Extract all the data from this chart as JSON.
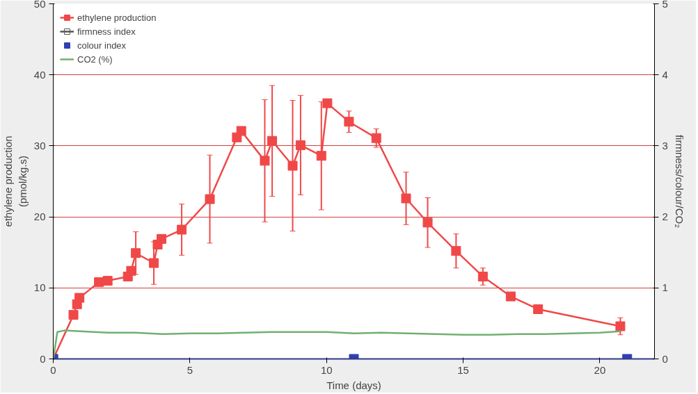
{
  "chart_data": {
    "type": "line",
    "xlabel": "Time (days)",
    "ylabel": "ethylene production\n(pmol/kg.s)",
    "y2label": "firmness/colour/CO₂",
    "xlim": [
      0,
      22
    ],
    "xticks": [
      0,
      5,
      10,
      15,
      20
    ],
    "ylim": [
      0,
      50
    ],
    "yticks": [
      0,
      10,
      20,
      30,
      40,
      50
    ],
    "y2lim": [
      0,
      5
    ],
    "y2ticks": [
      0,
      1,
      2,
      3,
      4,
      5
    ],
    "grid": "y",
    "legend": "top left",
    "marker": "square",
    "series": [
      {
        "name": "ethylene production",
        "color": "#f04848",
        "x": [
          0,
          0.74,
          0.87,
          0.96,
          1.67,
          1.99,
          2.73,
          2.85,
          3.02,
          3.68,
          3.82,
          3.96,
          4.7,
          5.73,
          6.72,
          6.88,
          7.74,
          8.01,
          8.76,
          9.05,
          9.81,
          10.03,
          10.82,
          11.82,
          12.91,
          13.7,
          14.74,
          15.72,
          16.74,
          17.74,
          20.75
        ],
        "values": [
          0,
          6.2,
          7.7,
          8.6,
          10.8,
          11.0,
          11.6,
          12.4,
          14.9,
          13.5,
          16.1,
          16.9,
          18.2,
          22.5,
          31.2,
          32.1,
          27.9,
          30.7,
          27.2,
          30.1,
          28.6,
          36.0,
          33.4,
          31.1,
          22.6,
          19.2,
          15.2,
          11.6,
          8.8,
          7.0,
          4.6
        ],
        "errors": [
          null,
          null,
          null,
          null,
          null,
          null,
          null,
          null,
          3,
          3,
          null,
          null,
          3.6,
          6.2,
          null,
          null,
          8.6,
          7.8,
          9.2,
          7,
          7.6,
          null,
          1.5,
          1.3,
          3.7,
          3.5,
          2.4,
          1.2,
          null,
          null,
          1.2
        ]
      },
      {
        "name": "firmness index",
        "color": "#555555",
        "marker": "open_square",
        "axis": "y2"
      },
      {
        "name": "colour index",
        "type": "scatter",
        "color": "#3040b0",
        "axis": "y2",
        "x": [
          0,
          11,
          21
        ],
        "values": [
          0,
          0,
          0
        ]
      },
      {
        "name": "CO2 (%)",
        "color": "#70b070",
        "marker": "none",
        "axis": "y2",
        "x": [
          0,
          0.15,
          0.4,
          1,
          2,
          3,
          4,
          5,
          6,
          7,
          8,
          9,
          10,
          11,
          12,
          13,
          14,
          15,
          16,
          17,
          18,
          19,
          20,
          20.75
        ],
        "values": [
          0,
          0.38,
          0.4,
          0.39,
          0.37,
          0.37,
          0.35,
          0.36,
          0.36,
          0.37,
          0.38,
          0.38,
          0.38,
          0.36,
          0.37,
          0.36,
          0.35,
          0.34,
          0.34,
          0.35,
          0.35,
          0.36,
          0.37,
          0.39
        ]
      }
    ]
  }
}
